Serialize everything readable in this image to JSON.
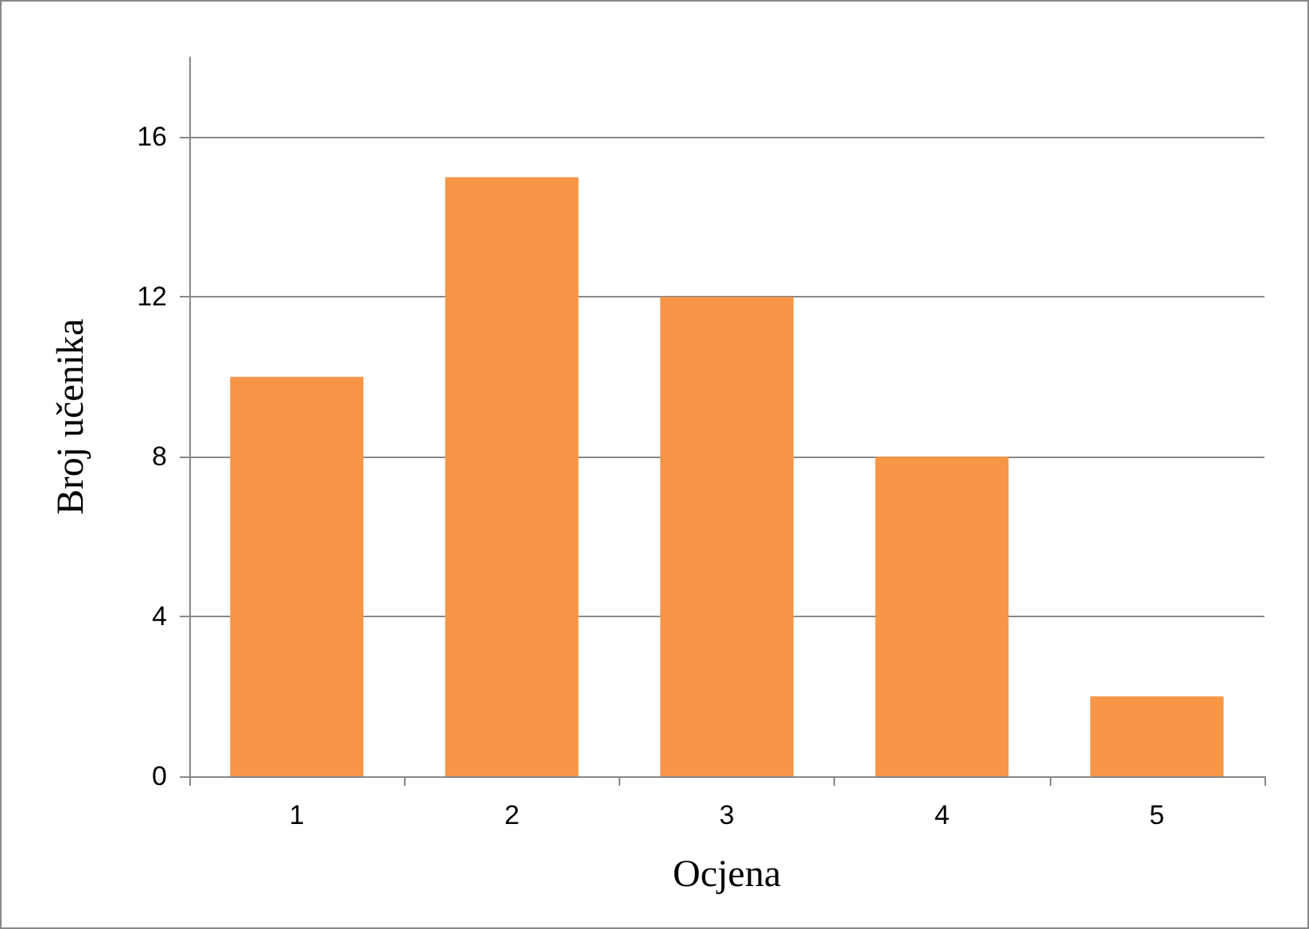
{
  "chart_data": {
    "type": "bar",
    "xlabel": "Ocjena",
    "ylabel": "Broj učenika",
    "categories": [
      "1",
      "2",
      "3",
      "4",
      "5"
    ],
    "values": [
      10,
      15,
      12,
      8,
      2
    ],
    "color": "#f79646",
    "ylim": [
      0,
      18
    ],
    "yticks": [
      0,
      4,
      8,
      12,
      16
    ],
    "grid": "y"
  }
}
